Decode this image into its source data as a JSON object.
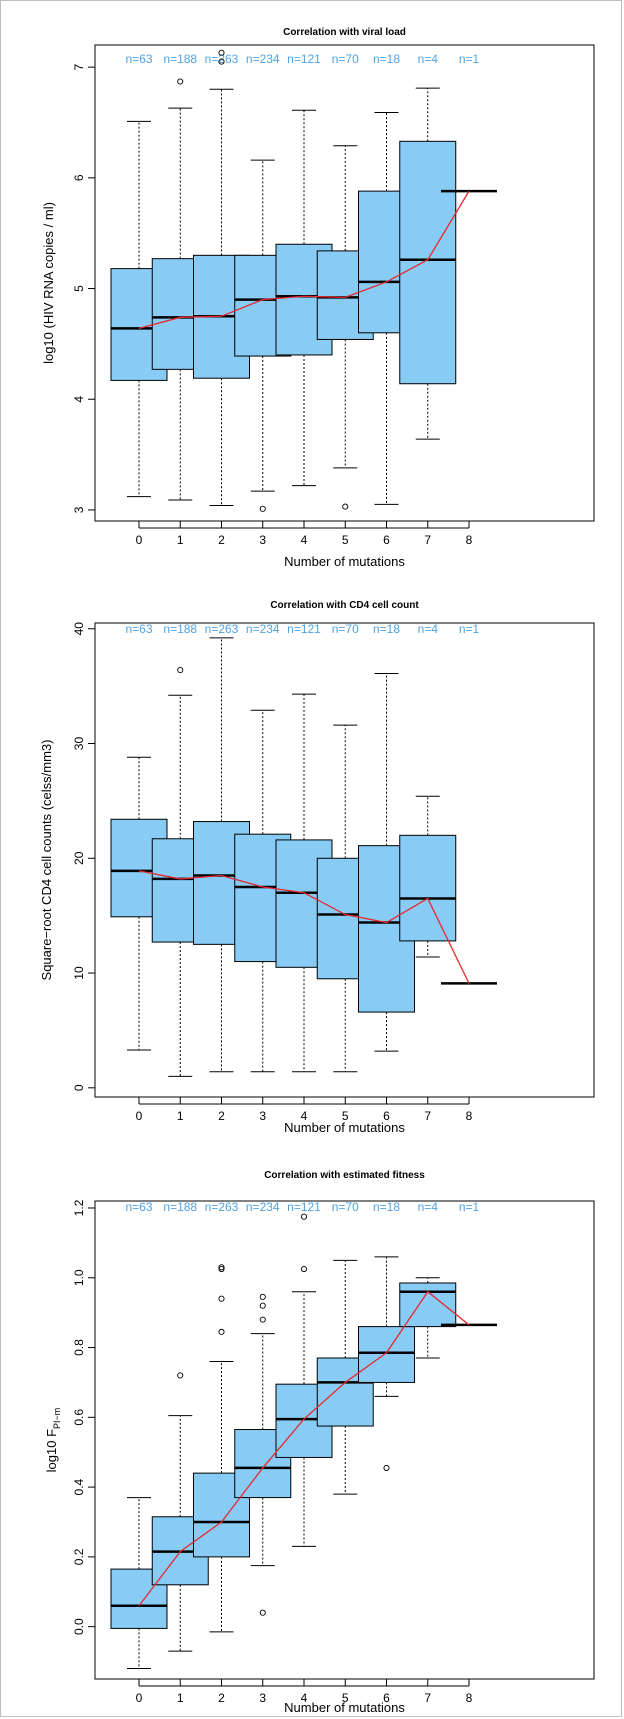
{
  "colors": {
    "box_fill": "#88CCF5",
    "median_line": "#E8272E",
    "n_label": "#4FA3E3",
    "stroke": "#000000"
  },
  "chart_data": [
    {
      "type": "box",
      "title": "Correlation with viral load",
      "xlabel": "Number of mutations",
      "ylabel": "log10 (HIV RNA copies / ml)",
      "ylabel_sub": "",
      "ylim": [
        2.9,
        7.2
      ],
      "yticks": [
        3,
        4,
        5,
        6,
        7
      ],
      "ytick_labels": [
        "3",
        "4",
        "5",
        "6",
        "7"
      ],
      "categories": [
        "0",
        "1",
        "2",
        "3",
        "4",
        "5",
        "6",
        "7",
        "8"
      ],
      "n_labels": [
        "n=63",
        "n=188",
        "n=263",
        "n=234",
        "n=121",
        "n=70",
        "n=18",
        "n=4",
        "n=1"
      ],
      "boxes": [
        {
          "whisker_low": 3.12,
          "q1": 4.17,
          "median": 4.64,
          "q3": 5.18,
          "whisker_high": 6.51,
          "outliers": []
        },
        {
          "whisker_low": 3.09,
          "q1": 4.27,
          "median": 4.74,
          "q3": 5.27,
          "whisker_high": 6.63,
          "outliers": [
            6.87
          ]
        },
        {
          "whisker_low": 3.04,
          "q1": 4.19,
          "median": 4.75,
          "q3": 5.3,
          "whisker_high": 6.8,
          "outliers": [
            7.05,
            7.13
          ]
        },
        {
          "whisker_low": 3.17,
          "q1": 4.39,
          "median": 4.9,
          "q3": 5.3,
          "whisker_high": 6.16,
          "outliers": [
            3.01
          ]
        },
        {
          "whisker_low": 3.22,
          "q1": 4.4,
          "median": 4.93,
          "q3": 5.4,
          "whisker_high": 6.61,
          "outliers": []
        },
        {
          "whisker_low": 3.38,
          "q1": 4.54,
          "median": 4.92,
          "q3": 5.34,
          "whisker_high": 6.29,
          "outliers": [
            3.03
          ]
        },
        {
          "whisker_low": 3.05,
          "q1": 4.6,
          "median": 5.06,
          "q3": 5.88,
          "whisker_high": 6.59,
          "outliers": []
        },
        {
          "whisker_low": 3.64,
          "q1": 4.14,
          "median": 5.26,
          "q3": 6.33,
          "whisker_high": 6.81,
          "outliers": []
        },
        {
          "whisker_low": 5.88,
          "q1": 5.88,
          "median": 5.88,
          "q3": 5.88,
          "whisker_high": 5.88,
          "outliers": []
        }
      ]
    },
    {
      "type": "box",
      "title": "Correlation with CD4 cell count",
      "xlabel": "Number of mutations",
      "ylabel": "Square−root CD4 cell counts (celss/mm3)",
      "ylabel_sub": "",
      "ylim": [
        -0.8,
        40.5
      ],
      "yticks": [
        0,
        10,
        20,
        30,
        40
      ],
      "ytick_labels": [
        "0",
        "10",
        "20",
        "30",
        "40"
      ],
      "categories": [
        "0",
        "1",
        "2",
        "3",
        "4",
        "5",
        "6",
        "7",
        "8"
      ],
      "n_labels": [
        "n=63",
        "n=188",
        "n=263",
        "n=234",
        "n=121",
        "n=70",
        "n=18",
        "n=4",
        "n=1"
      ],
      "boxes": [
        {
          "whisker_low": 3.3,
          "q1": 14.9,
          "median": 18.9,
          "q3": 23.4,
          "whisker_high": 28.8,
          "outliers": []
        },
        {
          "whisker_low": 1.0,
          "q1": 12.7,
          "median": 18.2,
          "q3": 21.7,
          "whisker_high": 34.2,
          "outliers": [
            36.4
          ]
        },
        {
          "whisker_low": 1.4,
          "q1": 12.5,
          "median": 18.5,
          "q3": 23.2,
          "whisker_high": 39.2,
          "outliers": []
        },
        {
          "whisker_low": 1.4,
          "q1": 11.0,
          "median": 17.5,
          "q3": 22.1,
          "whisker_high": 32.9,
          "outliers": []
        },
        {
          "whisker_low": 1.4,
          "q1": 10.5,
          "median": 17.0,
          "q3": 21.6,
          "whisker_high": 34.3,
          "outliers": []
        },
        {
          "whisker_low": 1.4,
          "q1": 9.5,
          "median": 15.1,
          "q3": 20.0,
          "whisker_high": 31.6,
          "outliers": []
        },
        {
          "whisker_low": 3.2,
          "q1": 6.6,
          "median": 14.4,
          "q3": 21.1,
          "whisker_high": 36.1,
          "outliers": []
        },
        {
          "whisker_low": 11.4,
          "q1": 12.8,
          "median": 16.5,
          "q3": 22.0,
          "whisker_high": 25.4,
          "outliers": []
        },
        {
          "whisker_low": 9.1,
          "q1": 9.1,
          "median": 9.1,
          "q3": 9.1,
          "whisker_high": 9.1,
          "outliers": []
        }
      ]
    },
    {
      "type": "box",
      "title": "Correlation with estimated fitness",
      "xlabel": "Number of mutations",
      "ylabel": "log10 F",
      "ylabel_sub": "PI−m",
      "ylim": [
        -0.15,
        1.22
      ],
      "yticks": [
        0.0,
        0.2,
        0.4,
        0.6,
        0.8,
        1.0,
        1.2
      ],
      "ytick_labels": [
        "0.0",
        "0.2",
        "0.4",
        "0.6",
        "0.8",
        "1.0",
        "1.2"
      ],
      "categories": [
        "0",
        "1",
        "2",
        "3",
        "4",
        "5",
        "6",
        "7",
        "8"
      ],
      "n_labels": [
        "n=63",
        "n=188",
        "n=263",
        "n=234",
        "n=121",
        "n=70",
        "n=18",
        "n=4",
        "n=1"
      ],
      "boxes": [
        {
          "whisker_low": -0.12,
          "q1": -0.005,
          "median": 0.06,
          "q3": 0.165,
          "whisker_high": 0.37,
          "outliers": []
        },
        {
          "whisker_low": -0.07,
          "q1": 0.12,
          "median": 0.215,
          "q3": 0.315,
          "whisker_high": 0.605,
          "outliers": [
            0.72
          ]
        },
        {
          "whisker_low": -0.015,
          "q1": 0.2,
          "median": 0.3,
          "q3": 0.44,
          "whisker_high": 0.76,
          "outliers": [
            0.845,
            0.94,
            1.025,
            1.03
          ]
        },
        {
          "whisker_low": 0.175,
          "q1": 0.37,
          "median": 0.455,
          "q3": 0.565,
          "whisker_high": 0.84,
          "outliers": [
            0.04,
            0.88,
            0.92,
            0.945
          ]
        },
        {
          "whisker_low": 0.23,
          "q1": 0.485,
          "median": 0.595,
          "q3": 0.695,
          "whisker_high": 0.96,
          "outliers": [
            1.025,
            1.175
          ]
        },
        {
          "whisker_low": 0.38,
          "q1": 0.575,
          "median": 0.7,
          "q3": 0.77,
          "whisker_high": 1.05,
          "outliers": []
        },
        {
          "whisker_low": 0.66,
          "q1": 0.7,
          "median": 0.785,
          "q3": 0.86,
          "whisker_high": 1.06,
          "outliers": [
            0.455
          ]
        },
        {
          "whisker_low": 0.77,
          "q1": 0.86,
          "median": 0.96,
          "q3": 0.985,
          "whisker_high": 1.0,
          "outliers": []
        },
        {
          "whisker_low": 0.865,
          "q1": 0.865,
          "median": 0.865,
          "q3": 0.865,
          "whisker_high": 0.865,
          "outliers": []
        }
      ]
    }
  ]
}
